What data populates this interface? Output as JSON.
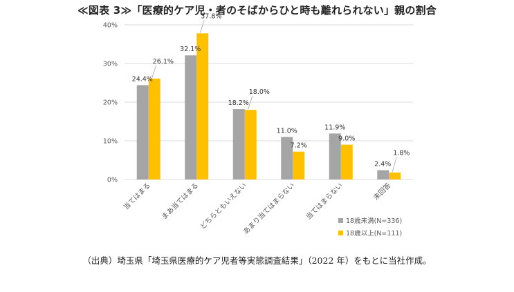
{
  "title": "≪図表 3≫「医療的ケア児・者のそばからひと時も離れられない」親の割合",
  "source": "（出典）埼玉県「埼玉県医療的ケア児者等実態調査結果」（2022 年）をもとに当社作成。",
  "colors": {
    "under18": "#a5a5a5",
    "over18": "#ffc000",
    "grid": "#d9d9d9",
    "text": "#595959"
  },
  "chart_data": {
    "type": "bar",
    "categories": [
      "当てはまる",
      "まあ当てはまる",
      "どちらともいえない",
      "あまり当てはまらない",
      "当てはまらない",
      "未回答"
    ],
    "series": [
      {
        "name": "18歳未満(N=336)",
        "values": [
          24.4,
          32.1,
          18.2,
          11.0,
          11.9,
          2.4
        ],
        "labels": [
          "24.4%",
          "32.1%",
          "18.2%",
          "11.0%",
          "11.9%",
          "2.4%"
        ]
      },
      {
        "name": "18歳以上(N=111)",
        "values": [
          26.1,
          37.8,
          18.0,
          7.2,
          9.0,
          1.8
        ],
        "labels": [
          "26.1%",
          "37.8%",
          "18.0%",
          "7.2%",
          "9.0%",
          "1.8%"
        ]
      }
    ],
    "yticks": [
      "0%",
      "10%",
      "20%",
      "30%",
      "40%"
    ],
    "ylim": [
      0,
      40
    ],
    "legend": "bottom-right",
    "grid": true
  }
}
